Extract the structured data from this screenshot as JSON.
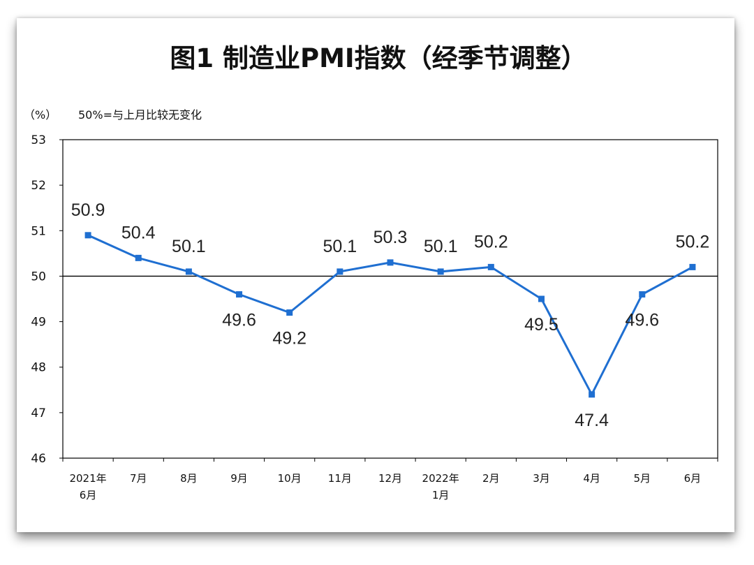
{
  "chart_data": {
    "type": "line",
    "title": "图1 制造业PMI指数（经季节调整）",
    "unit_label": "（%）",
    "note": "50%=与上月比较无变化",
    "x_labels": [
      [
        "2021年",
        "6月"
      ],
      [
        "7月"
      ],
      [
        "8月"
      ],
      [
        "9月"
      ],
      [
        "10月"
      ],
      [
        "11月"
      ],
      [
        "12月"
      ],
      [
        "2022年",
        "1月"
      ],
      [
        "2月"
      ],
      [
        "3月"
      ],
      [
        "4月"
      ],
      [
        "5月"
      ],
      [
        "6月"
      ]
    ],
    "series": [
      {
        "values": [
          50.9,
          50.4,
          50.1,
          49.6,
          49.2,
          50.1,
          50.3,
          50.1,
          50.2,
          49.5,
          47.4,
          49.6,
          50.2
        ]
      }
    ],
    "data_labels": [
      "50.9",
      "50.4",
      "50.1",
      "49.6",
      "49.2",
      "50.1",
      "50.3",
      "50.1",
      "50.2",
      "49.5",
      "47.4",
      "49.6",
      "50.2"
    ],
    "label_positions": [
      "above",
      "above",
      "above",
      "below",
      "below",
      "above",
      "above",
      "above",
      "above",
      "below",
      "below",
      "below",
      "above"
    ],
    "y_ticks": [
      "46",
      "47",
      "48",
      "49",
      "50",
      "51",
      "52",
      "53"
    ],
    "ylim": [
      46,
      53
    ],
    "reference_line": 50,
    "grid": false,
    "colors": {
      "line": "#1f6fd1",
      "marker": "#1f6fd1",
      "reference": "#000000",
      "axes": "#000000"
    }
  }
}
